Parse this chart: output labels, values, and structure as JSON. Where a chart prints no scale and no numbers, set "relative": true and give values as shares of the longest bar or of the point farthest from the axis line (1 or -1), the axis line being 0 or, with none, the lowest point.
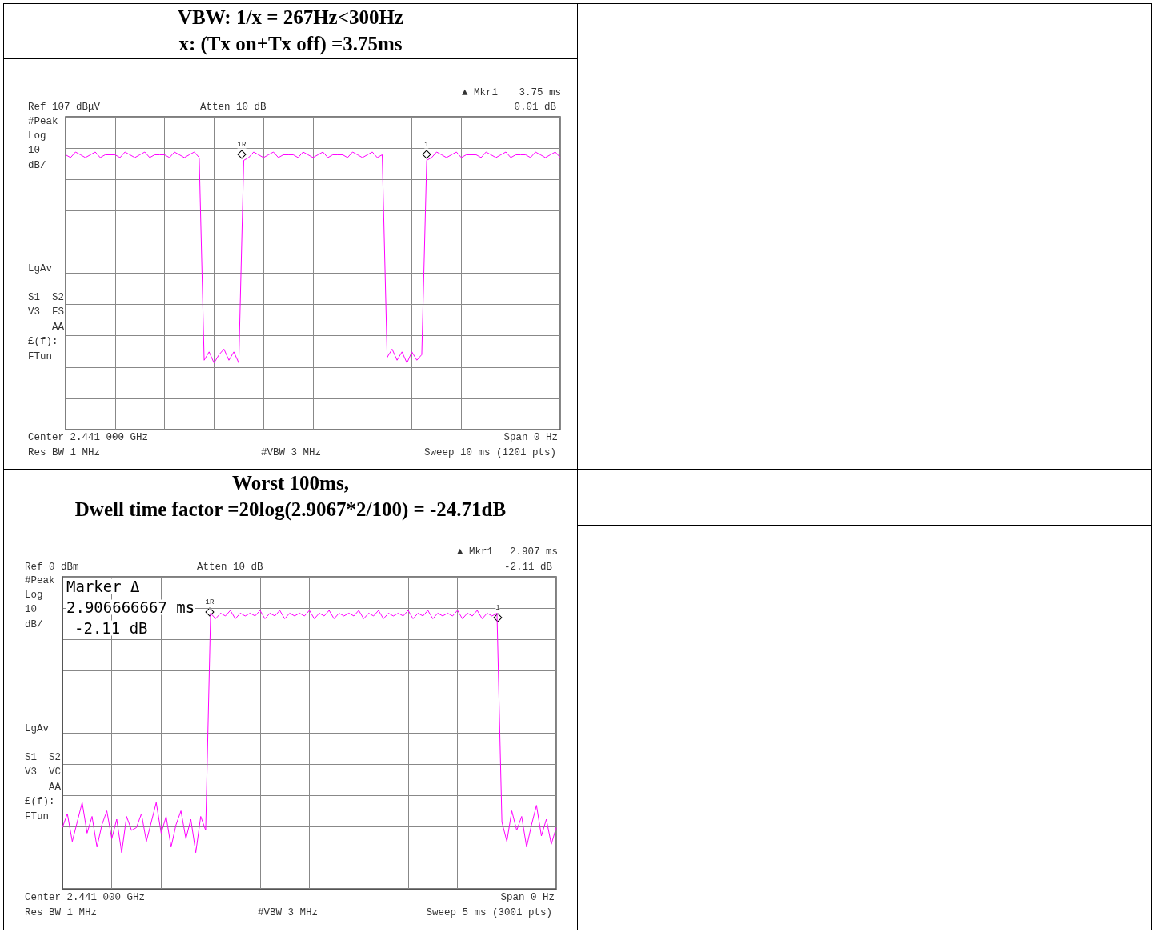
{
  "chart_data": [
    {
      "type": "line",
      "title": "VBW: 1/x = 267Hz<300Hz",
      "subtitle": "x: (Tx on+Tx off) =3.75ms",
      "relative": true,
      "grid": true,
      "line_style": "solid",
      "color": "#ff00ff",
      "categories": [
        null,
        null,
        null,
        null,
        null,
        null,
        null,
        null,
        null,
        null,
        null,
        null,
        null,
        null,
        null,
        null,
        null,
        null,
        null,
        null,
        null,
        null,
        null,
        null,
        null,
        null,
        null,
        null,
        null,
        null,
        null,
        null,
        null,
        null,
        null,
        null,
        null,
        null,
        null,
        null,
        null,
        null,
        null,
        null,
        null,
        null,
        null,
        null,
        null,
        null,
        null,
        null,
        null,
        null,
        null,
        null,
        null,
        null,
        null,
        null,
        null,
        null,
        null,
        null,
        null,
        null,
        null,
        null,
        null,
        null,
        null,
        null,
        null,
        null,
        null,
        null,
        null,
        null,
        null,
        null,
        null,
        null,
        null,
        null,
        null,
        null,
        null,
        null,
        null,
        null,
        null,
        null,
        null,
        null,
        null,
        null,
        null,
        null,
        null,
        null,
        null
      ],
      "values": [
        0.99,
        0.98,
        1,
        0.99,
        0.98,
        0.99,
        1,
        0.98,
        0.99,
        0.99,
        0.99,
        0.98,
        1,
        0.99,
        0.98,
        0.99,
        1,
        0.98,
        0.99,
        0.99,
        0.99,
        0.98,
        1,
        0.99,
        0.98,
        0.99,
        1,
        0.98,
        0.25,
        0.28,
        0.24,
        0.27,
        0.29,
        0.25,
        0.28,
        0.24,
        0.97,
        0.98,
        1,
        0.99,
        0.98,
        0.99,
        1,
        0.98,
        0.99,
        0.99,
        0.99,
        0.98,
        1,
        0.99,
        0.98,
        0.99,
        1,
        0.98,
        0.99,
        0.99,
        0.99,
        0.98,
        1,
        0.99,
        0.98,
        0.99,
        1,
        0.98,
        0.99,
        0.26,
        0.29,
        0.25,
        0.28,
        0.24,
        0.28,
        0.25,
        0.27,
        0.97,
        0.98,
        1,
        0.99,
        0.98,
        0.99,
        1,
        0.98,
        0.99,
        0.99,
        0.99,
        0.98,
        1,
        0.99,
        0.98,
        0.99,
        1,
        0.98,
        0.99,
        0.99,
        0.99,
        0.98,
        1,
        0.99,
        0.98,
        0.99,
        1,
        0.98
      ],
      "annotations": [
        "▲ Mkr1",
        "3.75 ms",
        "Ref 107 dBμV",
        "Atten 10 dB",
        "0.01 dB",
        "#Peak",
        "Log",
        "10",
        "dB/",
        "LgAv",
        "S1  S2",
        "V3  FS",
        "AA",
        "£(f):",
        "FTun",
        "Center 2.441 000 GHz",
        "Span 0 Hz",
        "Res BW 1 MHz",
        "#VBW 3 MHz",
        "Sweep 10 ms (1201 pts)",
        "1R",
        "1"
      ]
    },
    {
      "type": "line",
      "title": "Worst 100ms,",
      "subtitle": "Dwell time factor =20log(2.9067*2/100) = -24.71dB",
      "relative": true,
      "grid": true,
      "line_style": "solid",
      "color": "#ff00ff",
      "categories": [
        null,
        null,
        null,
        null,
        null,
        null,
        null,
        null,
        null,
        null,
        null,
        null,
        null,
        null,
        null,
        null,
        null,
        null,
        null,
        null,
        null,
        null,
        null,
        null,
        null,
        null,
        null,
        null,
        null,
        null,
        null,
        null,
        null,
        null,
        null,
        null,
        null,
        null,
        null,
        null,
        null,
        null,
        null,
        null,
        null,
        null,
        null,
        null,
        null,
        null,
        null,
        null,
        null,
        null,
        null,
        null,
        null,
        null,
        null,
        null,
        null,
        null,
        null,
        null,
        null,
        null,
        null,
        null,
        null,
        null,
        null,
        null,
        null,
        null,
        null,
        null,
        null,
        null,
        null,
        null,
        null,
        null,
        null,
        null,
        null,
        null,
        null,
        null,
        null,
        null,
        null,
        null,
        null,
        null,
        null,
        null,
        null,
        null,
        null,
        null,
        null
      ],
      "values": [
        0.22,
        0.27,
        0.17,
        0.24,
        0.31,
        0.2,
        0.26,
        0.15,
        0.23,
        0.28,
        0.18,
        0.25,
        0.13,
        0.26,
        0.21,
        0.22,
        0.27,
        0.17,
        0.24,
        0.31,
        0.2,
        0.26,
        0.15,
        0.23,
        0.28,
        0.18,
        0.25,
        0.13,
        0.26,
        0.21,
        0.99,
        0.97,
        0.99,
        0.98,
        1,
        0.97,
        0.99,
        0.98,
        0.99,
        0.98,
        1,
        0.97,
        0.99,
        0.98,
        1,
        0.97,
        0.99,
        0.98,
        0.99,
        0.98,
        1,
        0.97,
        0.99,
        0.98,
        1,
        0.97,
        0.99,
        0.98,
        0.99,
        0.98,
        1,
        0.97,
        0.99,
        0.98,
        1,
        0.97,
        0.99,
        0.98,
        0.99,
        0.98,
        1,
        0.97,
        0.99,
        0.98,
        1,
        0.97,
        0.99,
        0.98,
        0.99,
        0.98,
        1,
        0.97,
        0.99,
        0.98,
        1,
        0.97,
        0.99,
        0.98,
        0.99,
        0.24,
        0.17,
        0.28,
        0.21,
        0.26,
        0.15,
        0.23,
        0.3,
        0.19,
        0.25,
        0.16,
        0.22
      ],
      "ref_lines": [
        {
          "axis": "y",
          "value": 0.96,
          "color": "#33cc33"
        }
      ],
      "annotations": [
        "▲ Mkr1",
        "2.907 ms",
        "Ref 0 dBm",
        "Atten 10 dB",
        "-2.11 dB",
        "#Peak",
        "Log",
        "10",
        "dB/",
        "LgAv",
        "S1  S2",
        "V3  VC",
        "AA",
        "£(f):",
        "FTun",
        "Center 2.441 000 GHz",
        "Span 0 Hz",
        "Res BW 1 MHz",
        "#VBW 3 MHz",
        "Sweep 5 ms (3001 pts)",
        "1R",
        "1",
        "Marker Δ",
        "2.906666667 ms",
        "-2.11 dB"
      ]
    }
  ]
}
